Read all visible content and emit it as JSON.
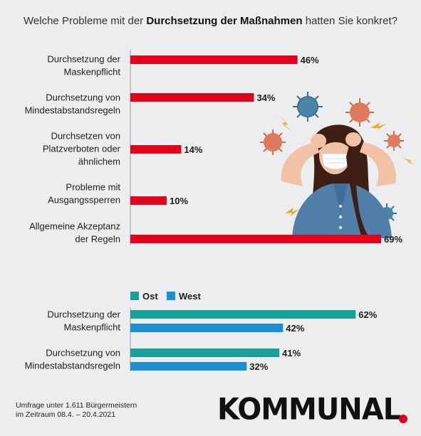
{
  "header": {
    "title_pre": "Welche Probleme mit der ",
    "title_bold": "Durchsetzung der Maßnahmen",
    "title_post": " hatten Sie konkret?"
  },
  "colors": {
    "red": "#e2001a",
    "ost": "#17a199",
    "west": "#1a8fd3"
  },
  "chart_data": [
    {
      "type": "bar",
      "orientation": "horizontal",
      "categories": [
        [
          "Durchsetzung der",
          "Maskenpflicht"
        ],
        [
          "Durchsetzung von",
          "Mindestabstandsregeln"
        ],
        [
          "Durchsetzen von",
          "Platzverboten oder",
          "ähnlichem"
        ],
        [
          "Probleme mit",
          "Ausgangssperren"
        ],
        [
          "Allgemeine Akzeptanz",
          "der Regeln"
        ]
      ],
      "values": [
        46,
        34,
        14,
        10,
        69
      ],
      "value_labels": [
        "46%",
        "34%",
        "14%",
        "10%",
        "69%"
      ],
      "unit": "%",
      "xlim": [
        0,
        69
      ]
    },
    {
      "type": "bar",
      "orientation": "horizontal",
      "legend": {
        "position": "top-left",
        "entries": [
          "Ost",
          "West"
        ]
      },
      "categories": [
        [
          "Durchsetzung der",
          "Maskenpflicht"
        ],
        [
          "Durchsetzung von",
          "Mindestabstandsregeln"
        ]
      ],
      "series": [
        {
          "name": "Ost",
          "values": [
            62,
            41
          ],
          "value_labels": [
            "62%",
            "41%"
          ]
        },
        {
          "name": "West",
          "values": [
            42,
            32
          ],
          "value_labels": [
            "42%",
            "32%"
          ]
        }
      ],
      "unit": "%",
      "xlim": [
        0,
        69
      ]
    }
  ],
  "footer": {
    "source_line1": "Umfrage unter 1.611 Bürgermeistern",
    "source_line2": "im Zeitraum 08.4. – 20.4.2021",
    "logo_text": "KOMMUNAL"
  },
  "illustration": {
    "icon": "stressed-woman-with-mask-and-viruses-icon"
  }
}
